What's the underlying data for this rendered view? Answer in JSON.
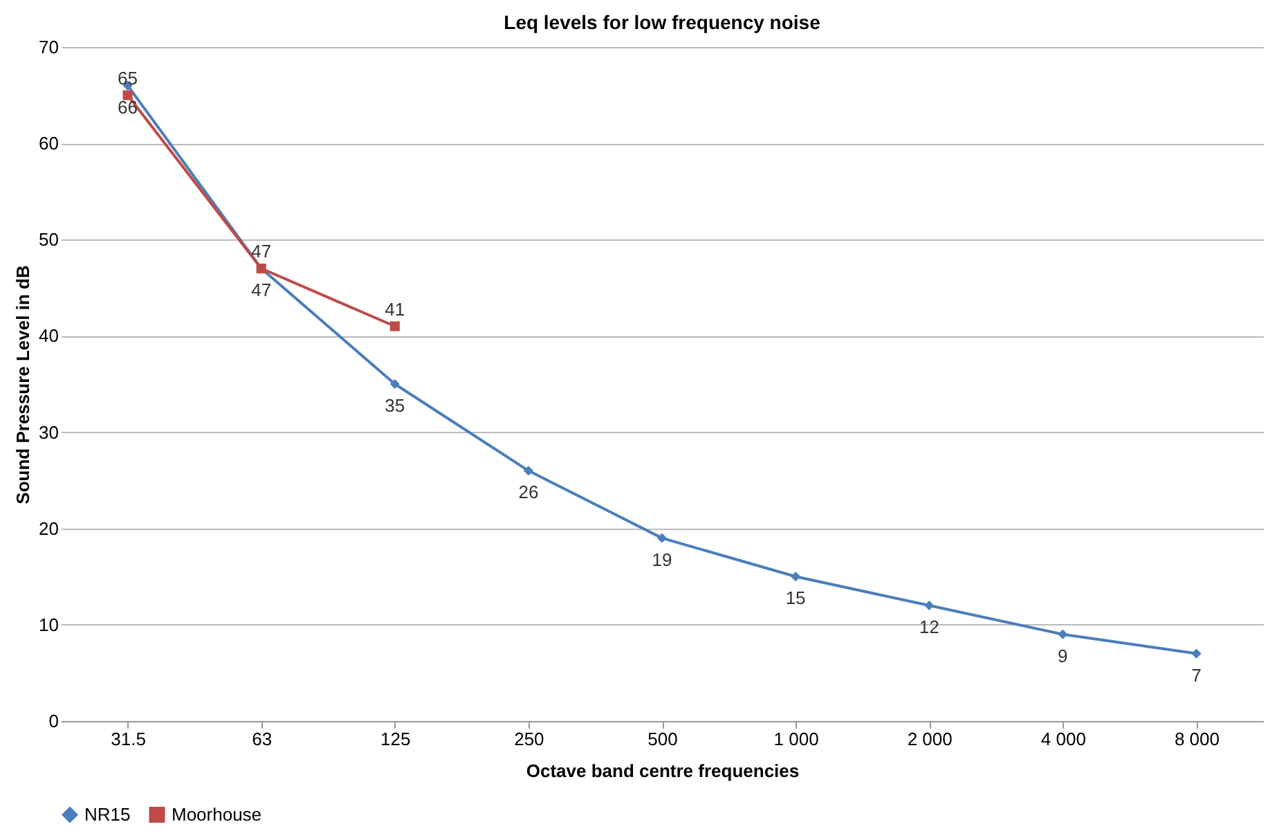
{
  "chart_data": {
    "type": "line",
    "title": "Leq levels for low frequency noise",
    "xlabel": "Octave band centre frequencies",
    "ylabel": "Sound Pressure Level in dB",
    "categories": [
      "31.5",
      "63",
      "125",
      "250",
      "500",
      "1 000",
      "2 000",
      "4 000",
      "8 000"
    ],
    "series": [
      {
        "name": "NR15",
        "color": "#4a7ebb",
        "marker": "diamond",
        "values": [
          66,
          47,
          35,
          26,
          19,
          15,
          12,
          9,
          7
        ]
      },
      {
        "name": "Moorhouse",
        "color": "#be4b48",
        "marker": "square",
        "values": [
          65,
          47,
          41,
          null,
          null,
          null,
          null,
          null,
          null
        ]
      }
    ],
    "ylim": [
      0,
      70
    ],
    "yticks": [
      0,
      10,
      20,
      30,
      40,
      50,
      60,
      70
    ],
    "grid": "y",
    "legend": "bottom",
    "data_labels": true
  }
}
